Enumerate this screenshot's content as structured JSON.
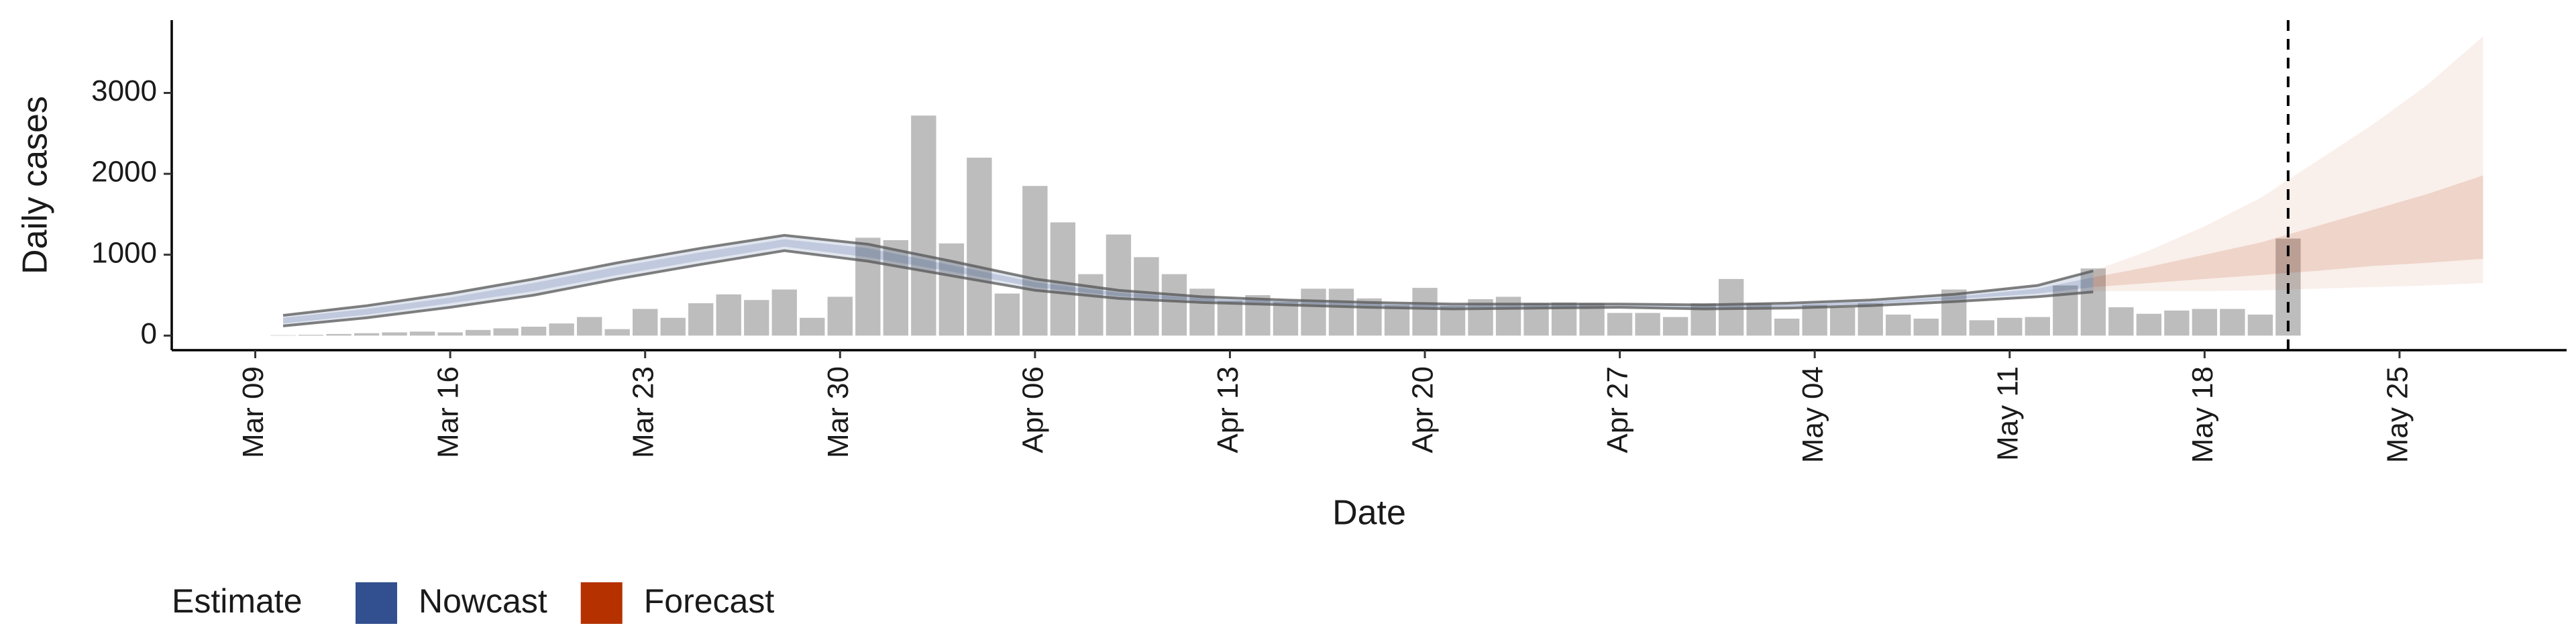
{
  "chart_data": {
    "type": "bar",
    "x_label": "Date",
    "y_label": "Daily cases",
    "legend_title": "Estimate",
    "x": [
      "Mar 10",
      "Mar 11",
      "Mar 12",
      "Mar 13",
      "Mar 14",
      "Mar 15",
      "Mar 16",
      "Mar 17",
      "Mar 18",
      "Mar 19",
      "Mar 20",
      "Mar 21",
      "Mar 22",
      "Mar 23",
      "Mar 24",
      "Mar 25",
      "Mar 26",
      "Mar 27",
      "Mar 28",
      "Mar 29",
      "Mar 30",
      "Mar 31",
      "Apr 01",
      "Apr 02",
      "Apr 03",
      "Apr 04",
      "Apr 05",
      "Apr 06",
      "Apr 07",
      "Apr 08",
      "Apr 09",
      "Apr 10",
      "Apr 11",
      "Apr 12",
      "Apr 13",
      "Apr 14",
      "Apr 15",
      "Apr 16",
      "Apr 17",
      "Apr 18",
      "Apr 19",
      "Apr 20",
      "Apr 21",
      "Apr 22",
      "Apr 23",
      "Apr 24",
      "Apr 25",
      "Apr 26",
      "Apr 27",
      "Apr 28",
      "Apr 29",
      "Apr 30",
      "May 01",
      "May 02",
      "May 03",
      "May 04",
      "May 05",
      "May 06",
      "May 07",
      "May 08",
      "May 09",
      "May 10",
      "May 11",
      "May 12",
      "May 13",
      "May 14",
      "May 15",
      "May 16",
      "May 17",
      "May 18",
      "May 19",
      "May 20",
      "May 21"
    ],
    "values": [
      5,
      10,
      20,
      30,
      40,
      50,
      40,
      70,
      90,
      110,
      150,
      230,
      80,
      330,
      220,
      400,
      510,
      440,
      570,
      220,
      480,
      1210,
      1180,
      2720,
      1140,
      2200,
      520,
      1850,
      1400,
      760,
      1250,
      970,
      760,
      580,
      430,
      500,
      420,
      580,
      580,
      460,
      380,
      590,
      370,
      450,
      480,
      400,
      410,
      400,
      280,
      280,
      230,
      400,
      700,
      400,
      210,
      380,
      350,
      400,
      260,
      210,
      570,
      190,
      220,
      230,
      620,
      830,
      350,
      270,
      310,
      330,
      330,
      260,
      1200
    ],
    "color": "#bdbdbd",
    "series": [
      {
        "name": "Nowcast",
        "color": "#32508f",
        "x": [
          "Mar 10",
          "Mar 13",
          "Mar 16",
          "Mar 19",
          "Mar 22",
          "Mar 25",
          "Mar 28",
          "Mar 31",
          "Apr 03",
          "Apr 06",
          "Apr 09",
          "Apr 12",
          "Apr 15",
          "Apr 18",
          "Apr 21",
          "Apr 24",
          "Apr 27",
          "Apr 30",
          "May 03",
          "May 06",
          "May 09",
          "May 12",
          "May 14"
        ],
        "upper_90": [
          250,
          370,
          520,
          700,
          900,
          1080,
          1240,
          1130,
          920,
          700,
          560,
          480,
          440,
          410,
          390,
          390,
          390,
          380,
          400,
          440,
          510,
          620,
          800
        ],
        "lower_90": [
          120,
          220,
          350,
          500,
          700,
          880,
          1050,
          920,
          740,
          560,
          460,
          410,
          380,
          350,
          330,
          340,
          350,
          330,
          340,
          370,
          420,
          480,
          540
        ],
        "upper_50": [
          220,
          330,
          470,
          650,
          850,
          1030,
          1190,
          1080,
          870,
          660,
          530,
          460,
          420,
          390,
          370,
          370,
          370,
          360,
          380,
          420,
          480,
          580,
          720
        ],
        "lower_50": [
          150,
          260,
          400,
          550,
          750,
          930,
          1100,
          970,
          790,
          600,
          490,
          430,
          400,
          370,
          350,
          355,
          365,
          345,
          360,
          390,
          450,
          520,
          600
        ]
      },
      {
        "name": "Forecast",
        "color": "#b53100",
        "x": [
          "May 14",
          "May 16",
          "May 18",
          "May 20",
          "May 22",
          "May 24",
          "May 26",
          "May 28"
        ],
        "upper_90": [
          800,
          1050,
          1350,
          1700,
          2150,
          2600,
          3100,
          3700
        ],
        "lower_90": [
          550,
          550,
          550,
          560,
          580,
          600,
          620,
          650
        ],
        "upper_50": [
          720,
          850,
          1000,
          1150,
          1350,
          1550,
          1750,
          1980
        ],
        "lower_50": [
          600,
          650,
          700,
          750,
          800,
          860,
          900,
          950
        ]
      }
    ],
    "vline": "May 21",
    "xlim": [
      "Mar 06",
      "May 31"
    ],
    "xticks": [
      "Mar 09",
      "Mar 16",
      "Mar 23",
      "Mar 30",
      "Apr 06",
      "Apr 13",
      "Apr 20",
      "Apr 27",
      "May 04",
      "May 11",
      "May 18",
      "May 25"
    ],
    "ylim": [
      -180,
      3900
    ],
    "yticks": [
      0,
      1000,
      2000,
      3000
    ],
    "grid": false
  }
}
